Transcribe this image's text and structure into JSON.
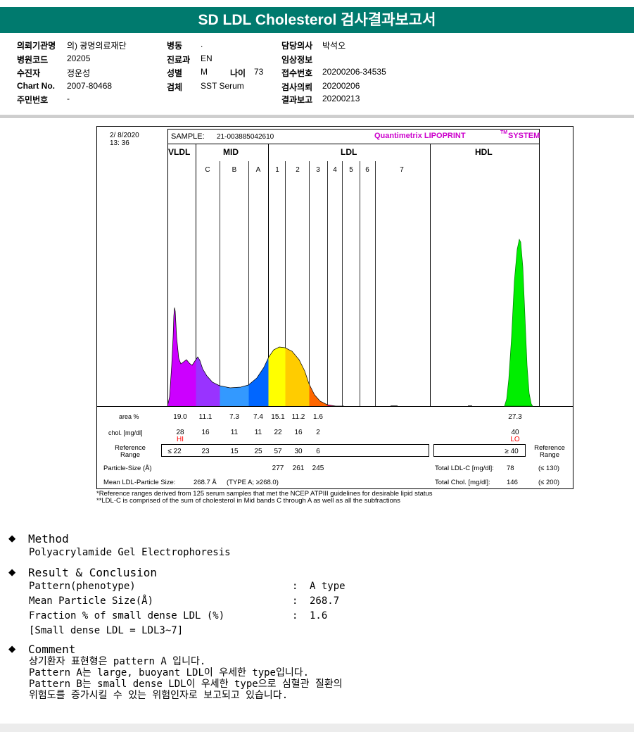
{
  "title": "SD LDL Cholesterol 검사결과보고서",
  "patient_info": {
    "col1": [
      {
        "label": "의뢰기관명",
        "value": "의) 광명의료재단"
      },
      {
        "label": "병원코드",
        "value": "20205"
      },
      {
        "label": "수진자",
        "value": "정운성"
      },
      {
        "label": "Chart No.",
        "value": "2007-80468"
      },
      {
        "label": "주민번호",
        "value": "-"
      }
    ],
    "col2": [
      {
        "label": "병동",
        "value": "."
      },
      {
        "label": "진료과",
        "value": "EN"
      },
      {
        "label": "성별",
        "value": "M"
      },
      {
        "label": "검체",
        "value": "SST Serum"
      }
    ],
    "age_label": "나이",
    "age_value": "73",
    "col3": [
      {
        "label": "담당의사",
        "value": "박석오"
      },
      {
        "label": "임상정보",
        "value": ""
      },
      {
        "label": "접수번호",
        "value": "20200206-34535"
      },
      {
        "label": "검사의뢰",
        "value": "20200206"
      },
      {
        "label": "결과보고",
        "value": "20200213"
      }
    ]
  },
  "report": {
    "datetime_line1": "2/  8/2020",
    "datetime_line2": "13: 36",
    "sample_label": "SAMPLE:",
    "sample_value": "21-003885042610",
    "brand": "Quantimetrix LIPOPRINT",
    "brand_tm": "TM",
    "brand_suffix": "SYSTEM",
    "region_labels": [
      "VLDL",
      "MID",
      "LDL",
      "HDL"
    ],
    "band_labels": [
      "C",
      "B",
      "A",
      "1",
      "2",
      "3",
      "4",
      "5",
      "6",
      "7"
    ],
    "area_label": "area %",
    "area_values": [
      "19.0",
      "11.1",
      "7.3",
      "7.4",
      "15.1",
      "11.2",
      "1.6",
      "27.3"
    ],
    "chol_label": "chol. [mg/dl]",
    "chol_values": [
      "28",
      "16",
      "11",
      "11",
      "22",
      "16",
      "2",
      "40"
    ],
    "hi_flag": "HI",
    "lo_flag": "LO",
    "ref_label_1": "Reference",
    "ref_label_2": "Range",
    "ref_values": [
      "≤ 22",
      "23",
      "15",
      "25",
      "57",
      "30",
      "6"
    ],
    "ref_hdl": "≥ 40",
    "particle_label": "Particle-Size (Å)",
    "particle_values": [
      "277",
      "261",
      "245"
    ],
    "total_ldl_label": "Total LDL-C [mg/dl]:",
    "total_ldl_value": "78",
    "total_ldl_range": "(≤ 130)",
    "mean_label": "Mean LDL-Particle Size:",
    "mean_value": "268.7 Å",
    "mean_type": "(TYPE A; ≥268.0)",
    "total_chol_label": "Total Chol. [mg/dl]:",
    "total_chol_value": "146",
    "total_chol_range": "(≤ 200)"
  },
  "notes": [
    "*Reference ranges derived from 125 serum samples that met the NCEP ATPIII guidelines for desirable lipid status",
    "**LDL-C is comprised of the sum of cholesterol in Mid bands C through A as well as all the subfractions"
  ],
  "method": {
    "heading": "Method",
    "text": "Polyacrylamide Gel Electrophoresis"
  },
  "result": {
    "heading": "Result & Conclusion",
    "items": [
      {
        "label": "Pattern(phenotype)",
        "colon": ":",
        "value": "A type"
      },
      {
        "label": "Mean Particle Size(Å)",
        "colon": ":",
        "value": "268.7"
      },
      {
        "label": "Fraction % of small dense LDL (%)",
        "colon": ":",
        "value": "1.6"
      }
    ],
    "footnote": "[Small dense LDL = LDL3~7]"
  },
  "comment": {
    "heading": "Comment",
    "lines": [
      "상기환자 표현형은 pattern A 입니다.",
      "Pattern A는 large, buoyant LDL이 우세한 type입니다.",
      "Pattern B는 small dense LDL이 우세한 type으로 심혈관 질환의",
      "위험도를 증가시킬 수 있는 위험인자로 보고되고 있습니다."
    ]
  },
  "colors": {
    "header_bg": "#007a6e",
    "vldl": "#cc00ff",
    "mid_c": "#9933ff",
    "mid_b": "#3399ff",
    "mid_a": "#0066ff",
    "ldl1": "#ffff00",
    "ldl2": "#ffcc00",
    "ldl3": "#ff6600",
    "ldl4": "#ff0066",
    "hdl": "#00ee00",
    "hi_lo": "#ff0000",
    "brand": "#cc00cc"
  }
}
